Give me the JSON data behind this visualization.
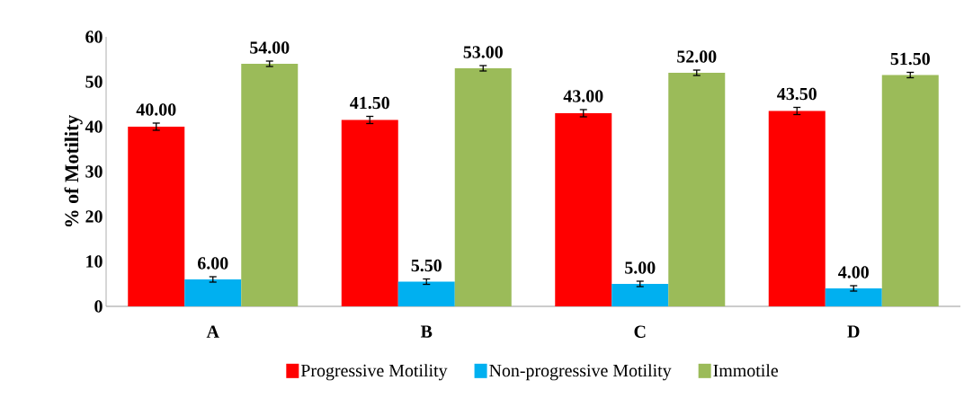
{
  "chart_data": {
    "type": "bar",
    "ylabel": "% of Motility",
    "categories": [
      "A",
      "B",
      "C",
      "D"
    ],
    "series": [
      {
        "name": "Progressive Motility",
        "color": "#ff0000",
        "values": [
          40.0,
          41.5,
          43.0,
          43.5
        ],
        "errors": [
          0.8,
          0.8,
          0.8,
          0.8
        ],
        "value_labels": [
          "40.00",
          "41.50",
          "43.00",
          "43.50"
        ]
      },
      {
        "name": "Non-progressive Motility",
        "color": "#00b0f0",
        "values": [
          6.0,
          5.5,
          5.0,
          4.0
        ],
        "errors": [
          0.6,
          0.6,
          0.6,
          0.6
        ],
        "value_labels": [
          "6.00",
          "5.50",
          "5.00",
          "4.00"
        ]
      },
      {
        "name": "Immotile",
        "color": "#9bbb59",
        "values": [
          54.0,
          53.0,
          52.0,
          51.5
        ],
        "errors": [
          0.6,
          0.6,
          0.6,
          0.6
        ],
        "value_labels": [
          "54.00",
          "53.00",
          "52.00",
          "51.50"
        ]
      }
    ],
    "ylim": [
      0,
      60
    ],
    "yticks": [
      0,
      10,
      20,
      30,
      40,
      50,
      60
    ],
    "grid": false,
    "legend": "bottom"
  }
}
